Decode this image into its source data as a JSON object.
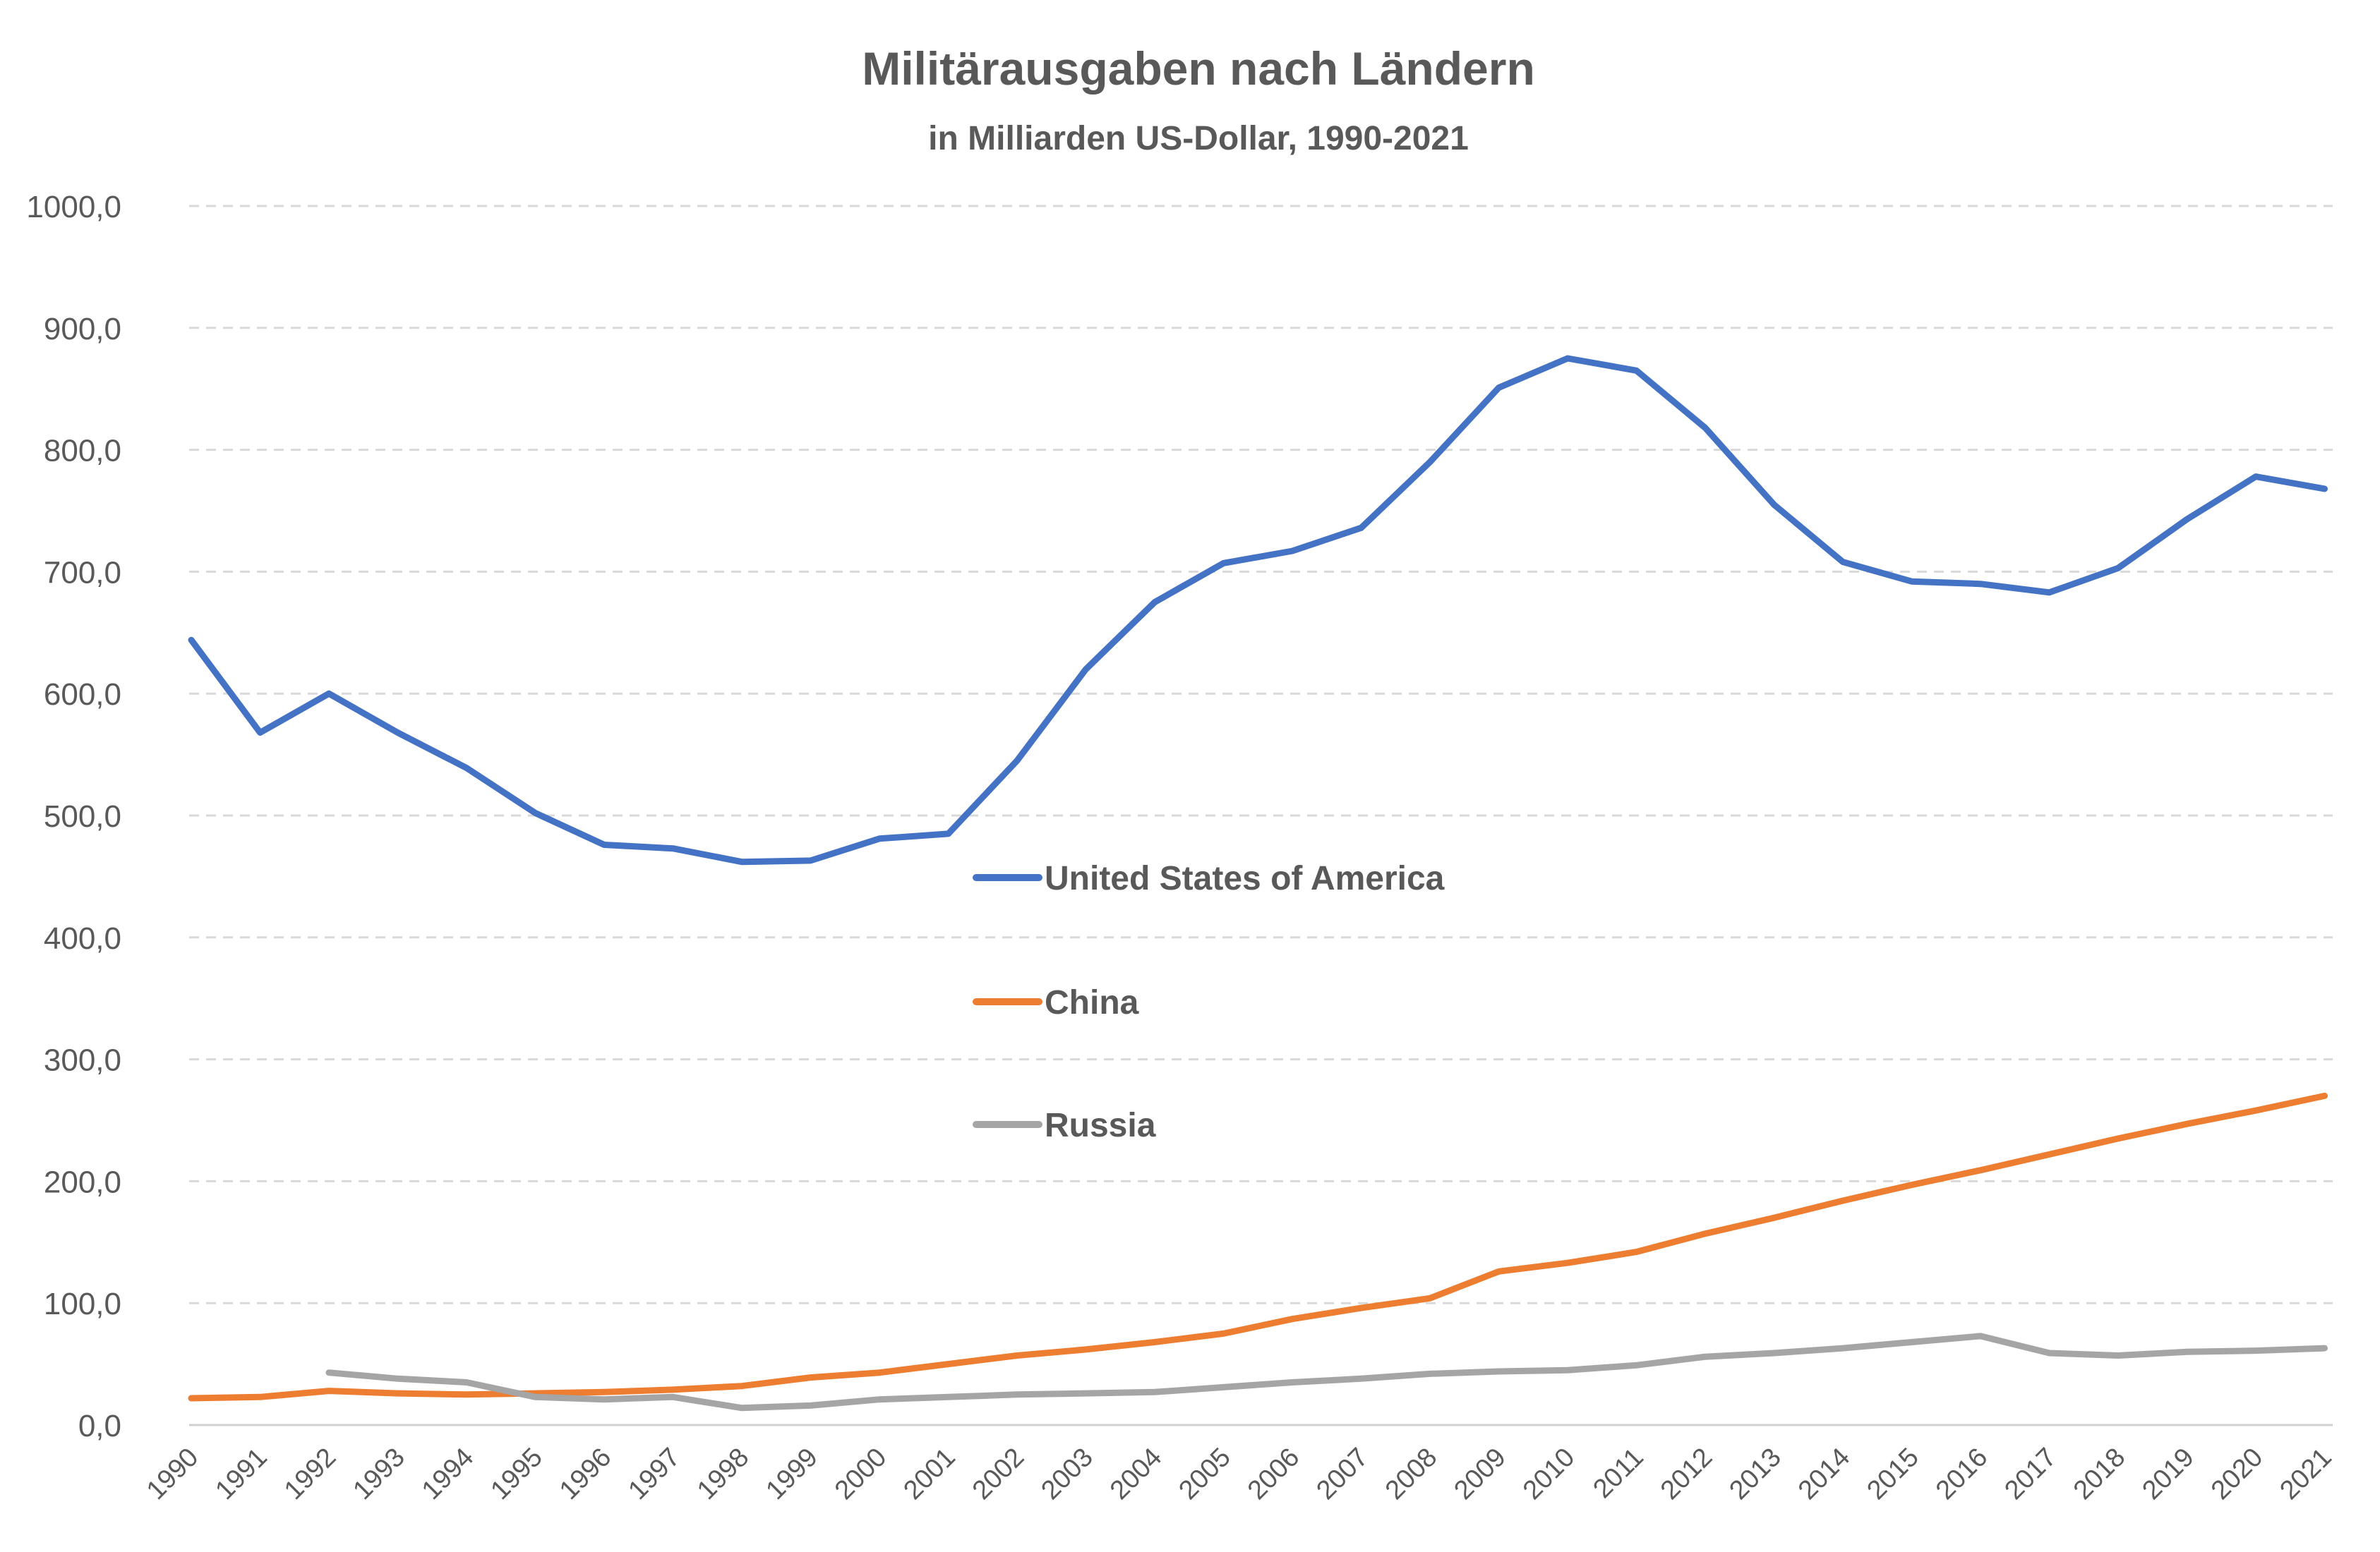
{
  "chart_data": {
    "type": "line",
    "title": "Militärausgaben nach Ländern",
    "subtitle": "in Milliarden US-Dollar, 1990-2021",
    "xlabel": "",
    "ylabel": "",
    "ylim": [
      0,
      1000
    ],
    "y_ticks": [
      "0,0",
      "100,0",
      "200,0",
      "300,0",
      "400,0",
      "500,0",
      "600,0",
      "700,0",
      "800,0",
      "900,0",
      "1000,0"
    ],
    "grid": true,
    "legend_position": "center",
    "categories": [
      "1990",
      "1991",
      "1992",
      "1993",
      "1994",
      "1995",
      "1996",
      "1997",
      "1998",
      "1999",
      "2000",
      "2001",
      "2002",
      "2003",
      "2004",
      "2005",
      "2006",
      "2007",
      "2008",
      "2009",
      "2010",
      "2011",
      "2012",
      "2013",
      "2014",
      "2015",
      "2016",
      "2017",
      "2018",
      "2019",
      "2020",
      "2021"
    ],
    "series": [
      {
        "name": "United States of America",
        "color": "#4472C4",
        "values": [
          644,
          568,
          600,
          568,
          539,
          502,
          476,
          473,
          462,
          463,
          481,
          485,
          545,
          620,
          675,
          707,
          717,
          736,
          790,
          851,
          875,
          865,
          818,
          755,
          708,
          692,
          690,
          683,
          703,
          743,
          778,
          768
        ]
      },
      {
        "name": "China",
        "color": "#ED7D31",
        "values": [
          22,
          23,
          28,
          26,
          25,
          26,
          27,
          29,
          32,
          39,
          43,
          50,
          57,
          62,
          68,
          75,
          87,
          96,
          104,
          126,
          133,
          142,
          157,
          170,
          184,
          197,
          209,
          222,
          235,
          247,
          258,
          270
        ]
      },
      {
        "name": "Russia",
        "color": "#A5A5A5",
        "values": [
          null,
          null,
          43,
          38,
          35,
          23,
          21,
          23,
          14,
          16,
          21,
          23,
          25,
          26,
          27,
          31,
          35,
          38,
          42,
          44,
          45,
          49,
          56,
          59,
          63,
          68,
          73,
          59,
          57,
          60,
          61,
          63
        ]
      }
    ]
  }
}
